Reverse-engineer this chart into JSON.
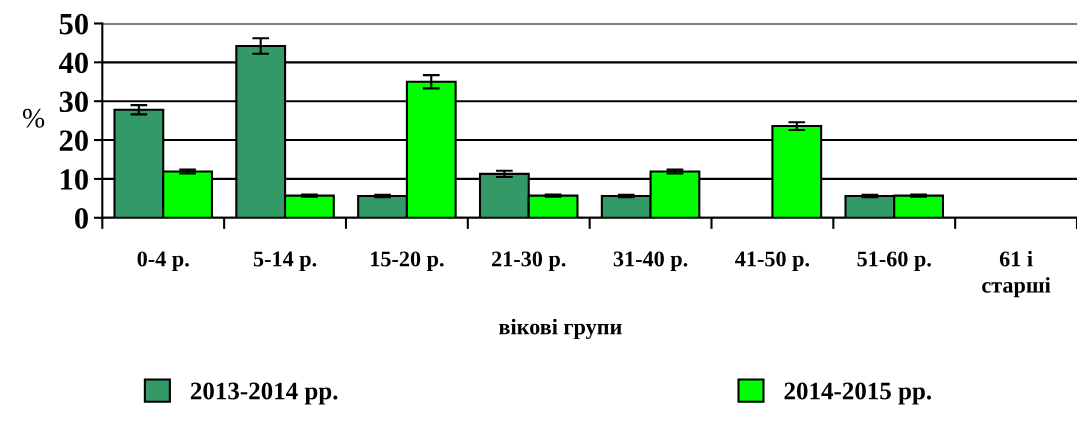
{
  "chart_data": {
    "type": "bar",
    "xlabel": "вікові групи",
    "ylabel": "%",
    "categories": [
      "0-4 р.",
      "5-14 р.",
      "15-20 р.",
      "21-30 р.",
      "31-40 р.",
      "41-50 р.",
      "51-60 р.",
      "61 і\nстарші"
    ],
    "series": [
      {
        "name": "2013-2014 рр.",
        "color": "#339966",
        "values": [
          27.8,
          44.2,
          5.6,
          11.3,
          5.6,
          null,
          5.6,
          null
        ],
        "errors": [
          1.2,
          2,
          0.3,
          0.8,
          0.3,
          null,
          0.3,
          null
        ]
      },
      {
        "name": "2014-2015 рр.",
        "color": "#00ff00",
        "values": [
          11.9,
          5.7,
          35,
          5.7,
          11.9,
          23.6,
          5.7,
          null
        ],
        "errors": [
          0.5,
          0.3,
          1.7,
          0.3,
          0.5,
          1,
          0.3,
          null
        ]
      }
    ],
    "ylim": [
      0,
      50
    ],
    "yticks": [
      0,
      10,
      20,
      30,
      40,
      50
    ],
    "grid": "y",
    "legend": "bottom"
  }
}
